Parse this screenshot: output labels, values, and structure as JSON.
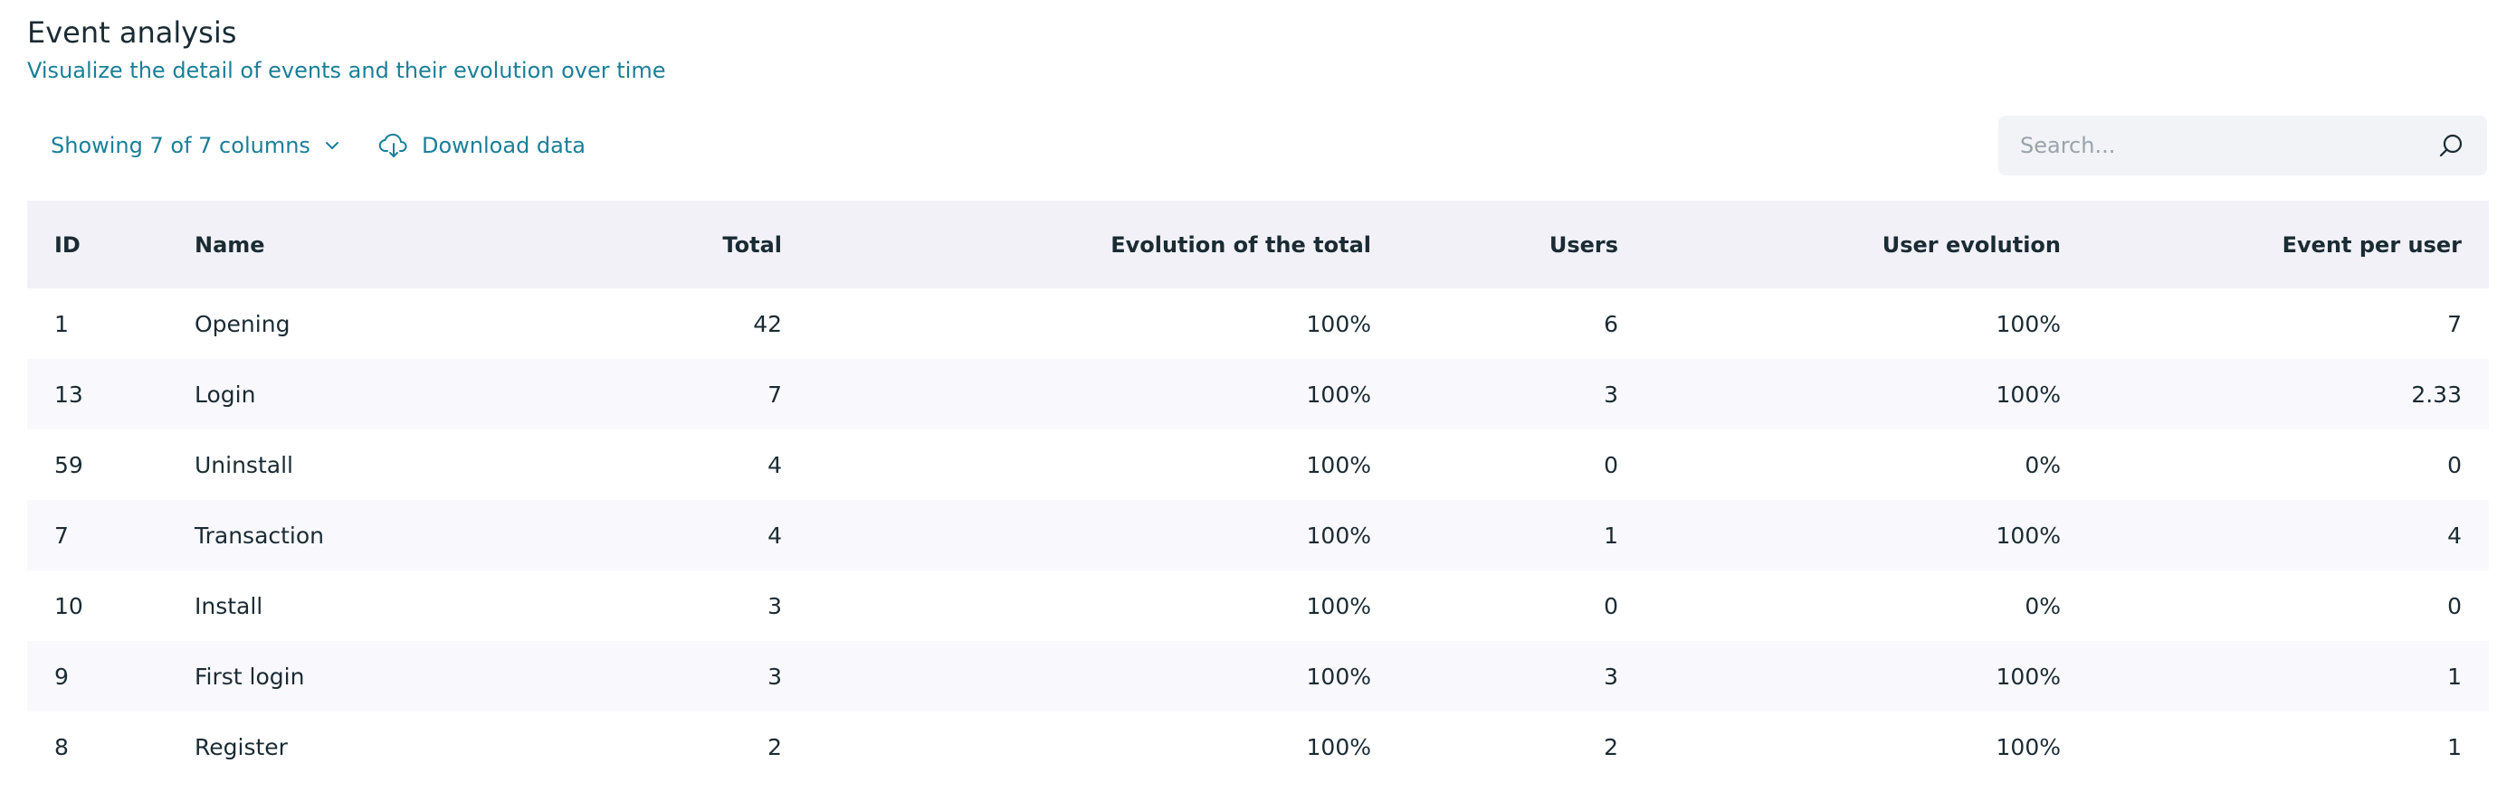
{
  "header": {
    "title": "Event analysis",
    "subtitle": "Visualize the detail of events and their evolution over time"
  },
  "toolbar": {
    "columns_label": "Showing 7 of 7 columns",
    "download_label": "Download data",
    "search_placeholder": "Search...",
    "accent_color": "#1a7f98"
  },
  "icons": {
    "columns_dropdown": "chevron-down-icon",
    "download": "cloud-download-icon",
    "search": "search-icon"
  },
  "table": {
    "columns": [
      "ID",
      "Name",
      "Total",
      "Evolution of the total",
      "Users",
      "User evolution",
      "Event per user"
    ],
    "rows": [
      [
        "1",
        "Opening",
        "42",
        "100%",
        "6",
        "100%",
        "7"
      ],
      [
        "13",
        "Login",
        "7",
        "100%",
        "3",
        "100%",
        "2.33"
      ],
      [
        "59",
        "Uninstall",
        "4",
        "100%",
        "0",
        "0%",
        "0"
      ],
      [
        "7",
        "Transaction",
        "4",
        "100%",
        "1",
        "100%",
        "4"
      ],
      [
        "10",
        "Install",
        "3",
        "100%",
        "0",
        "0%",
        "0"
      ],
      [
        "9",
        "First login",
        "3",
        "100%",
        "3",
        "100%",
        "1"
      ],
      [
        "8",
        "Register",
        "2",
        "100%",
        "2",
        "100%",
        "1"
      ]
    ]
  }
}
